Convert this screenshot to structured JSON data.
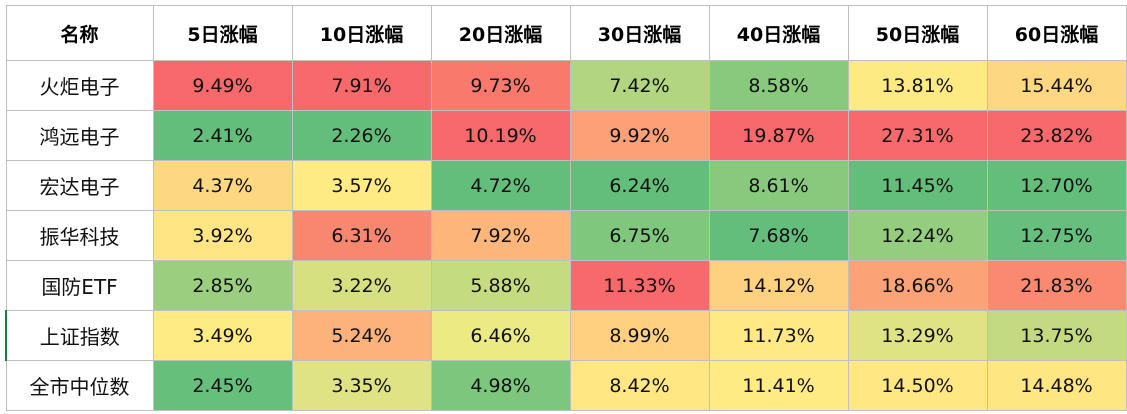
{
  "table": {
    "headers": [
      "名称",
      "5日涨幅",
      "10日涨幅",
      "20日涨幅",
      "30日涨幅",
      "40日涨幅",
      "50日涨幅",
      "60日涨幅"
    ],
    "rows": [
      {
        "name": "火炬电子",
        "values": [
          "9.49%",
          "7.91%",
          "9.73%",
          "7.42%",
          "8.58%",
          "13.81%",
          "15.44%"
        ],
        "colors": [
          "#f8696b",
          "#f8696b",
          "#f9796c",
          "#b1d580",
          "#88c97d",
          "#feea83",
          "#fdd880"
        ]
      },
      {
        "name": "鸿远电子",
        "values": [
          "2.41%",
          "2.26%",
          "10.19%",
          "9.92%",
          "19.87%",
          "27.31%",
          "23.82%"
        ],
        "colors": [
          "#63be7b",
          "#63be7b",
          "#f8696b",
          "#fba077",
          "#f8696b",
          "#f8696b",
          "#f8696b"
        ]
      },
      {
        "name": "宏达电子",
        "values": [
          "4.37%",
          "3.57%",
          "4.72%",
          "6.24%",
          "8.61%",
          "11.45%",
          "12.70%"
        ],
        "colors": [
          "#fed881",
          "#ffeb84",
          "#63be7b",
          "#63be7b",
          "#88c97d",
          "#63be7b",
          "#63be7b"
        ]
      },
      {
        "name": "振华科技",
        "values": [
          "3.92%",
          "6.31%",
          "7.92%",
          "6.75%",
          "7.68%",
          "12.24%",
          "12.75%"
        ],
        "colors": [
          "#ffe583",
          "#f8876f",
          "#fcb67a",
          "#7fc77d",
          "#63be7b",
          "#95cd7e",
          "#66bf7c"
        ]
      },
      {
        "name": "国防ETF",
        "values": [
          "2.85%",
          "3.22%",
          "5.88%",
          "11.33%",
          "14.12%",
          "18.66%",
          "21.83%"
        ],
        "colors": [
          "#9bcf7f",
          "#d6e081",
          "#c5db80",
          "#f8696b",
          "#fdd17f",
          "#fba277",
          "#f98a70"
        ]
      },
      {
        "name": "上证指数",
        "values": [
          "3.49%",
          "5.24%",
          "6.46%",
          "8.99%",
          "11.73%",
          "13.29%",
          "13.75%"
        ],
        "colors": [
          "#ffeb84",
          "#fcb27a",
          "#ecea83",
          "#fed07f",
          "#ffe984",
          "#e0e383",
          "#c4da80"
        ]
      },
      {
        "name": "全市中位数",
        "values": [
          "2.45%",
          "3.35%",
          "4.98%",
          "8.42%",
          "11.41%",
          "14.50%",
          "14.48%"
        ],
        "colors": [
          "#67bf7c",
          "#e0e383",
          "#7dc67d",
          "#ffe783",
          "#ffeb84",
          "#ffe783",
          "#fee683"
        ]
      }
    ]
  }
}
